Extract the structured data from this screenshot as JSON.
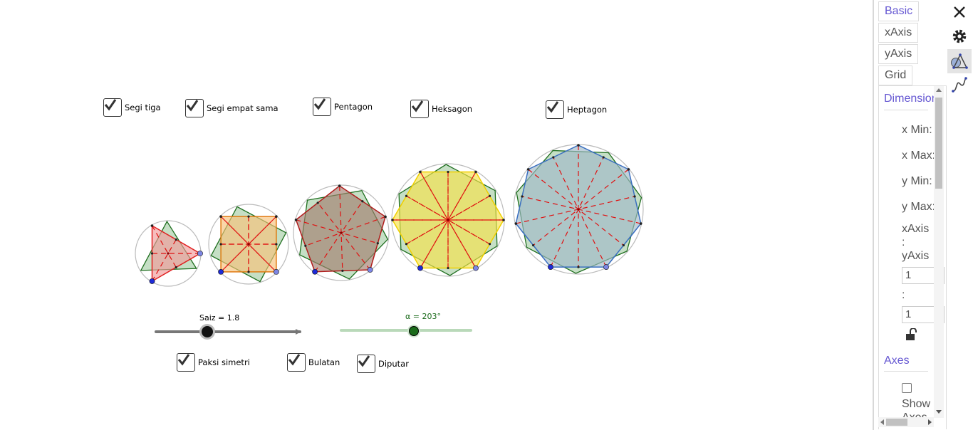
{
  "graphics": {
    "checkboxes_top": [
      {
        "label": "Segi tiga",
        "checked": true
      },
      {
        "label": "Segi empat sama",
        "checked": true
      },
      {
        "label": "Pentagon",
        "checked": true
      },
      {
        "label": "Heksagon",
        "checked": true
      },
      {
        "label": "Heptagon",
        "checked": true
      }
    ],
    "checkboxes_bottom": [
      {
        "label": "Paksi simetri",
        "checked": true
      },
      {
        "label": "Bulatan",
        "checked": true
      },
      {
        "label": "Diputar",
        "checked": true
      }
    ],
    "slider_size": {
      "label": "Saiz = 1.8",
      "value": 1.8
    },
    "slider_angle": {
      "label": "α = 203°",
      "value": 203
    },
    "polygons": [
      {
        "name": "triangle",
        "sides": 3,
        "fill": "#f19a9a",
        "stroke": "#e02020"
      },
      {
        "name": "square",
        "sides": 4,
        "fill": "#f7c27a",
        "stroke": "#e07a10"
      },
      {
        "name": "pentagon",
        "sides": 5,
        "fill": "#a27e6e",
        "stroke": "#b01c1c"
      },
      {
        "name": "hexagon",
        "sides": 6,
        "fill": "#f6e24a",
        "stroke": "#f0d000"
      },
      {
        "name": "heptagon",
        "sides": 7,
        "fill": "#9fb8c8",
        "stroke": "#3a6fc0"
      }
    ],
    "rotated_color": "#2e8b2e",
    "axis_color": "#e01010"
  },
  "panel": {
    "tabs": [
      "Basic",
      "xAxis",
      "yAxis",
      "Grid"
    ],
    "active_tab": "Basic",
    "sections": {
      "dimensions": "Dimensions",
      "axes": "Axes"
    },
    "fields": {
      "xmin": "x Min:",
      "xmax": "x Max:",
      "ymin": "y Min:",
      "ymax": "y Max:",
      "ratio_x": "xAxis",
      "ratio_colon1": ":",
      "ratio_y": "yAxis",
      "ratio_val1": "1",
      "ratio_colon2": ":",
      "ratio_val2": "1",
      "show_axes": "Show Axes"
    },
    "icons": [
      "close-icon",
      "gear-icon",
      "graphics-style-icon",
      "function-style-icon"
    ]
  }
}
